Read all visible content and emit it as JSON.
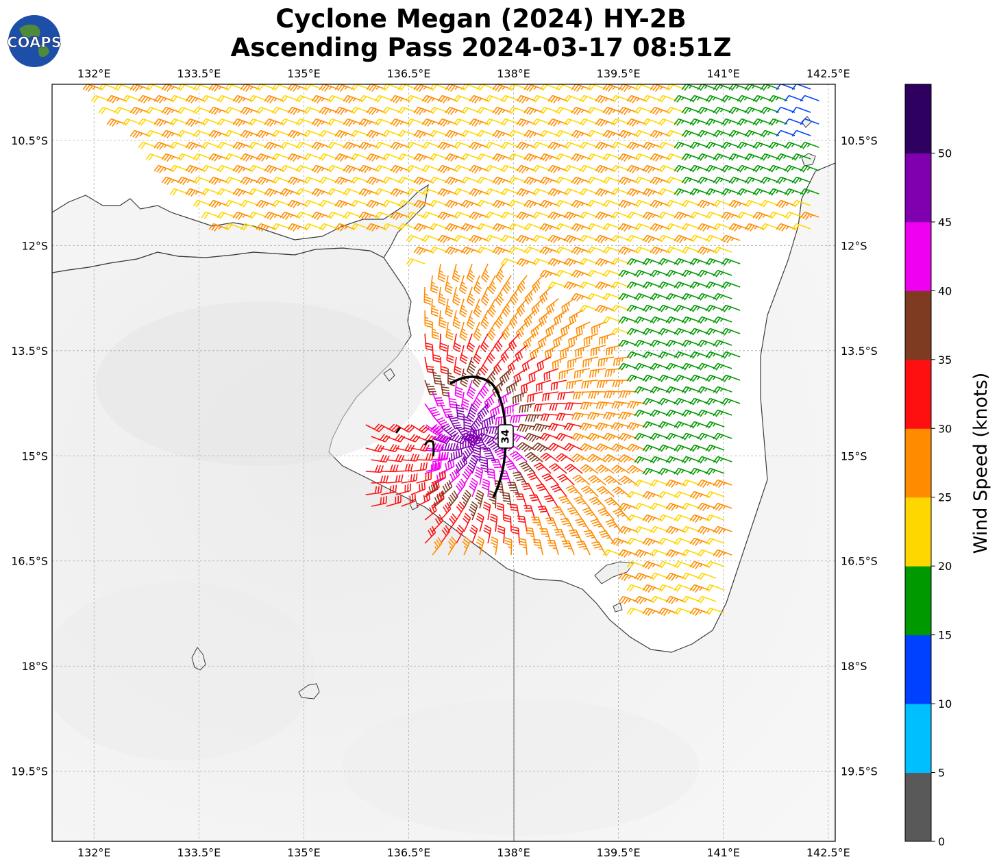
{
  "title": {
    "line1": "Cyclone Megan (2024) HY-2B",
    "line2": "Ascending Pass 2024-03-17 08:51Z"
  },
  "logo": {
    "text": "COAPS",
    "icon": "globe-logo-icon"
  },
  "map": {
    "lon_range": [
      131.4,
      142.6
    ],
    "lat_range": [
      -20.5,
      -9.7
    ],
    "lon_ticks": [
      "132°E",
      "133.5°E",
      "135°E",
      "136.5°E",
      "138°E",
      "139.5°E",
      "141°E",
      "142.5°E"
    ],
    "lat_ticks": [
      "10.5°S",
      "12°S",
      "13.5°S",
      "15°S",
      "16.5°S",
      "18°S",
      "19.5°S"
    ],
    "gridlines": true,
    "radius_label": "34"
  },
  "colorbar": {
    "label": "Wind Speed (knots)",
    "ticks": [
      "0",
      "5",
      "10",
      "15",
      "20",
      "25",
      "30",
      "35",
      "40",
      "45",
      "50"
    ],
    "colors": [
      "#595959",
      "#00bfff",
      "#0040ff",
      "#009900",
      "#ffd700",
      "#ff8c00",
      "#ff1010",
      "#7f3a22",
      "#f000f0",
      "#8000b0",
      "#2e0060"
    ]
  }
}
